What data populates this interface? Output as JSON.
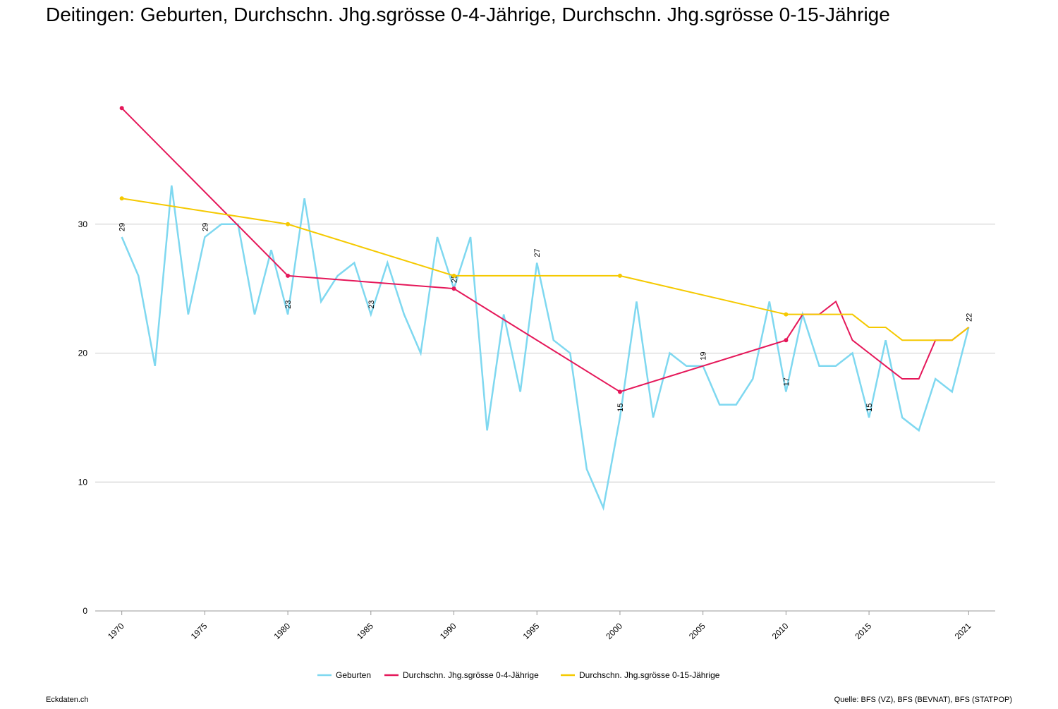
{
  "chart_data": {
    "type": "line",
    "title": "Deitingen: Geburten, Durchschn. Jhg.sgrösse 0-4-Jährige, Durchschn. Jhg.sgrösse 0-15-Jährige",
    "footer_left": "Eckdaten.ch",
    "footer_right": "Quelle: BFS (VZ), BFS (BEVNAT), BFS (STATPOP)",
    "xlim": [
      1968.4,
      2022.6
    ],
    "xticks": [
      1970,
      1975,
      1980,
      1985,
      1990,
      1995,
      2000,
      2005,
      2010,
      2015,
      2021
    ],
    "ylim": [
      0,
      40
    ],
    "yticks": [
      0,
      10,
      20,
      30
    ],
    "grid": true,
    "legend": "bottom",
    "census_x": [
      1970,
      1980,
      1990,
      2000,
      2010
    ],
    "data_label_x": [
      1970,
      1975,
      1980,
      1985,
      1990,
      1995,
      2000,
      2005,
      2010,
      2015,
      2021
    ],
    "series": [
      {
        "name": "Geburten",
        "color": "#7fd8f0",
        "width": 2.5,
        "labels": true,
        "x": [
          1970,
          1971,
          1972,
          1973,
          1974,
          1975,
          1976,
          1977,
          1978,
          1979,
          1980,
          1981,
          1982,
          1983,
          1984,
          1985,
          1986,
          1987,
          1988,
          1989,
          1990,
          1991,
          1992,
          1993,
          1994,
          1995,
          1996,
          1997,
          1998,
          1999,
          2000,
          2001,
          2002,
          2003,
          2004,
          2005,
          2006,
          2007,
          2008,
          2009,
          2010,
          2011,
          2012,
          2013,
          2014,
          2015,
          2016,
          2017,
          2018,
          2019,
          2020,
          2021
        ],
        "values": [
          29,
          26,
          19,
          33,
          23,
          29,
          30,
          30,
          23,
          28,
          23,
          32,
          24,
          26,
          27,
          23,
          27,
          23,
          20,
          29,
          25,
          29,
          14,
          23,
          17,
          27,
          21,
          20,
          11,
          8,
          15,
          24,
          15,
          20,
          19,
          19,
          16,
          16,
          18,
          24,
          17,
          23,
          19,
          19,
          20,
          15,
          21,
          15,
          14,
          18,
          17,
          22
        ]
      },
      {
        "name": "Durchschn. Jhg.sgrösse 0-4-Jährige",
        "color": "#e5185a",
        "width": 2,
        "x": [
          1970,
          1980,
          1990,
          2000,
          2010,
          2011,
          2012,
          2013,
          2014,
          2015,
          2016,
          2017,
          2018,
          2019,
          2020,
          2021
        ],
        "values": [
          39,
          26,
          25,
          17,
          21,
          23,
          23,
          24,
          21,
          20,
          19,
          18,
          18,
          21,
          21,
          22
        ]
      },
      {
        "name": "Durchschn. Jhg.sgrösse 0-15-Jährige",
        "color": "#f5c900",
        "width": 2,
        "x": [
          1970,
          1980,
          1990,
          2000,
          2010,
          2011,
          2012,
          2013,
          2014,
          2015,
          2016,
          2017,
          2018,
          2019,
          2020,
          2021
        ],
        "values": [
          32,
          30,
          26,
          26,
          23,
          23,
          23,
          23,
          23,
          22,
          22,
          21,
          21,
          21,
          21,
          22
        ]
      }
    ]
  }
}
